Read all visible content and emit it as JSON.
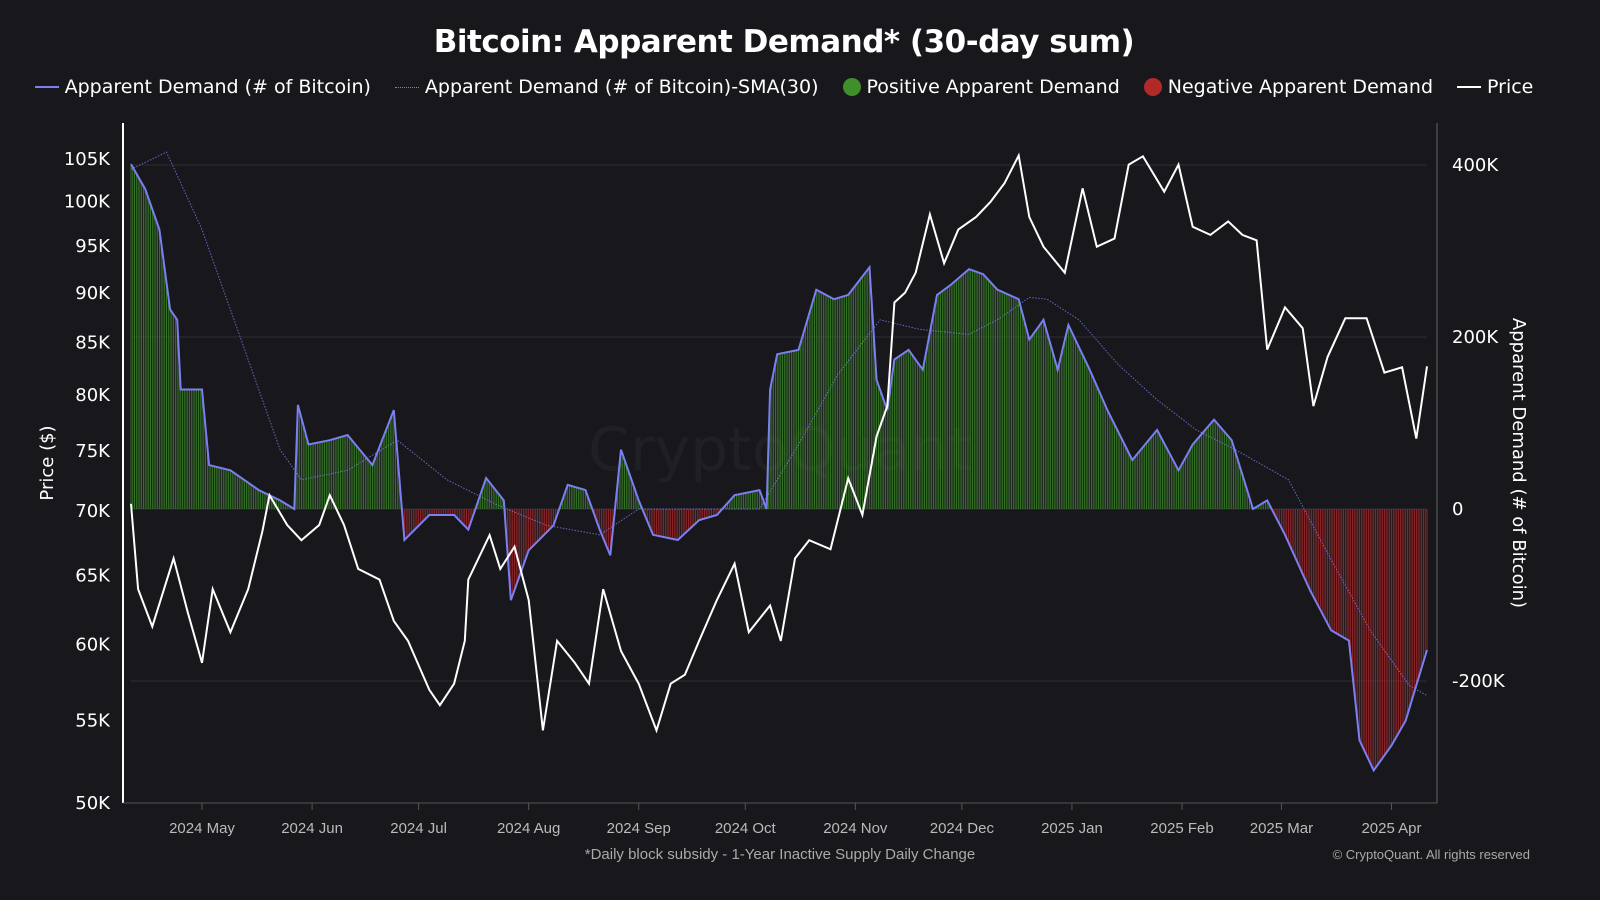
{
  "chart_data": {
    "type": "line",
    "title": "Bitcoin: Apparent Demand* (30-day sum)",
    "footnote": "*Daily block subsidy - 1-Year Inactive Supply Daily Change",
    "copyright": "© CryptoQuant. All rights reserved",
    "watermark": "CryptoQuant",
    "ylabel_left": "Price ($)",
    "ylabel_right": "Apparent Demand (# of Bitcoin)",
    "y_left_scale": "log",
    "y_left_ticks": [
      "50K",
      "55K",
      "60K",
      "65K",
      "70K",
      "75K",
      "80K",
      "85K",
      "90K",
      "95K",
      "100K",
      "105K"
    ],
    "y_left_tick_values": [
      50000,
      55000,
      60000,
      65000,
      70000,
      75000,
      80000,
      85000,
      90000,
      95000,
      100000,
      105000
    ],
    "y_right_ticks": [
      "-200K",
      "0",
      "200K",
      "400K"
    ],
    "y_right_tick_values": [
      -200000,
      0,
      200000,
      400000
    ],
    "x_ticks": [
      "2024 May",
      "2024 Jun",
      "2024 Jul",
      "2024 Aug",
      "2024 Sep",
      "2024 Oct",
      "2024 Nov",
      "2024 Dec",
      "2025 Jan",
      "2025 Feb",
      "2025 Mar",
      "2025 Apr"
    ],
    "x_tick_dates": [
      "2024-05-01",
      "2024-06-01",
      "2024-07-01",
      "2024-08-01",
      "2024-09-01",
      "2024-10-01",
      "2024-11-01",
      "2024-12-01",
      "2025-01-01",
      "2025-02-01",
      "2025-03-01",
      "2025-04-01"
    ],
    "xlim": [
      "2024-04-11",
      "2025-04-11"
    ],
    "grid": "horizontal at right-axis ticks",
    "legend_placement": "top",
    "colors": {
      "demand": "#7b7ff0",
      "sma": "#7b7ff0",
      "positive": "#3f8f2a",
      "negative": "#b02a2a",
      "price": "#ffffff",
      "background": "#17171c"
    },
    "legend": [
      {
        "label": "Apparent Demand (# of Bitcoin)",
        "swatch": "line"
      },
      {
        "label": "Apparent Demand (# of Bitcoin)-SMA(30)",
        "swatch": "dotted"
      },
      {
        "label": "Positive Apparent Demand",
        "swatch": "green-circle"
      },
      {
        "label": "Negative Apparent Demand",
        "swatch": "red-circle"
      },
      {
        "label": "Price",
        "swatch": "white-line"
      }
    ],
    "series": [
      {
        "name": "Price",
        "axis": "left",
        "unit": "USD",
        "points": [
          [
            "2024-04-11",
            70500
          ],
          [
            "2024-04-13",
            63900
          ],
          [
            "2024-04-17",
            61200
          ],
          [
            "2024-04-23",
            66200
          ],
          [
            "2024-04-27",
            62200
          ],
          [
            "2024-05-01",
            58700
          ],
          [
            "2024-05-04",
            63900
          ],
          [
            "2024-05-09",
            60800
          ],
          [
            "2024-05-14",
            63900
          ],
          [
            "2024-05-18",
            68300
          ],
          [
            "2024-05-20",
            71200
          ],
          [
            "2024-05-25",
            68800
          ],
          [
            "2024-05-29",
            67600
          ],
          [
            "2024-06-03",
            68800
          ],
          [
            "2024-06-06",
            71200
          ],
          [
            "2024-06-10",
            68800
          ],
          [
            "2024-06-14",
            65400
          ],
          [
            "2024-06-20",
            64600
          ],
          [
            "2024-06-24",
            61600
          ],
          [
            "2024-06-28",
            60200
          ],
          [
            "2024-07-04",
            56900
          ],
          [
            "2024-07-07",
            55900
          ],
          [
            "2024-07-11",
            57300
          ],
          [
            "2024-07-14",
            60200
          ],
          [
            "2024-07-15",
            64600
          ],
          [
            "2024-07-21",
            68000
          ],
          [
            "2024-07-24",
            65400
          ],
          [
            "2024-07-28",
            67100
          ],
          [
            "2024-08-01",
            63100
          ],
          [
            "2024-08-05",
            54300
          ],
          [
            "2024-08-09",
            60200
          ],
          [
            "2024-08-14",
            58700
          ],
          [
            "2024-08-18",
            57300
          ],
          [
            "2024-08-22",
            63900
          ],
          [
            "2024-08-27",
            59500
          ],
          [
            "2024-09-01",
            57300
          ],
          [
            "2024-09-06",
            54300
          ],
          [
            "2024-09-10",
            57300
          ],
          [
            "2024-09-14",
            57900
          ],
          [
            "2024-09-18",
            60200
          ],
          [
            "2024-09-23",
            63100
          ],
          [
            "2024-09-28",
            65800
          ],
          [
            "2024-10-02",
            60800
          ],
          [
            "2024-10-08",
            62700
          ],
          [
            "2024-10-11",
            60200
          ],
          [
            "2024-10-15",
            66200
          ],
          [
            "2024-10-19",
            67600
          ],
          [
            "2024-10-25",
            66900
          ],
          [
            "2024-10-30",
            72600
          ],
          [
            "2024-11-03",
            69600
          ],
          [
            "2024-11-07",
            76200
          ],
          [
            "2024-11-10",
            78900
          ],
          [
            "2024-11-12",
            88900
          ],
          [
            "2024-11-15",
            89900
          ],
          [
            "2024-11-18",
            92000
          ],
          [
            "2024-11-22",
            98400
          ],
          [
            "2024-11-26",
            93000
          ],
          [
            "2024-11-30",
            96700
          ],
          [
            "2024-12-05",
            98100
          ],
          [
            "2024-12-09",
            99800
          ],
          [
            "2024-12-13",
            102000
          ],
          [
            "2024-12-17",
            105300
          ],
          [
            "2024-12-20",
            98100
          ],
          [
            "2024-12-24",
            94800
          ],
          [
            "2024-12-30",
            92000
          ],
          [
            "2025-01-04",
            101400
          ],
          [
            "2025-01-08",
            94800
          ],
          [
            "2025-01-13",
            95700
          ],
          [
            "2025-01-17",
            104200
          ],
          [
            "2025-01-21",
            105200
          ],
          [
            "2025-01-27",
            101000
          ],
          [
            "2025-01-31",
            104200
          ],
          [
            "2025-02-04",
            97000
          ],
          [
            "2025-02-09",
            96100
          ],
          [
            "2025-02-14",
            97600
          ],
          [
            "2025-02-18",
            96100
          ],
          [
            "2025-02-22",
            95500
          ],
          [
            "2025-02-25",
            84200
          ],
          [
            "2025-03-02",
            88400
          ],
          [
            "2025-03-07",
            86300
          ],
          [
            "2025-03-10",
            78900
          ],
          [
            "2025-03-14",
            83500
          ],
          [
            "2025-03-19",
            87300
          ],
          [
            "2025-03-25",
            87300
          ],
          [
            "2025-03-30",
            82000
          ],
          [
            "2025-04-04",
            82500
          ],
          [
            "2025-04-08",
            76000
          ],
          [
            "2025-04-11",
            82600
          ]
        ]
      },
      {
        "name": "Apparent Demand (# of Bitcoin)",
        "axis": "right",
        "points": [
          [
            "2024-04-11",
            401000
          ],
          [
            "2024-04-15",
            372000
          ],
          [
            "2024-04-19",
            325000
          ],
          [
            "2024-04-22",
            232000
          ],
          [
            "2024-04-24",
            220000
          ],
          [
            "2024-04-25",
            139000
          ],
          [
            "2024-05-01",
            139000
          ],
          [
            "2024-05-03",
            51000
          ],
          [
            "2024-05-09",
            45000
          ],
          [
            "2024-05-17",
            22000
          ],
          [
            "2024-05-23",
            10000
          ],
          [
            "2024-05-27",
            0
          ],
          [
            "2024-05-28",
            121000
          ],
          [
            "2024-05-31",
            75000
          ],
          [
            "2024-06-06",
            80000
          ],
          [
            "2024-06-11",
            86000
          ],
          [
            "2024-06-18",
            51000
          ],
          [
            "2024-06-24",
            115000
          ],
          [
            "2024-06-27",
            -36000
          ],
          [
            "2024-07-04",
            -7000
          ],
          [
            "2024-07-11",
            -7000
          ],
          [
            "2024-07-15",
            -24000
          ],
          [
            "2024-07-20",
            36000
          ],
          [
            "2024-07-25",
            10000
          ],
          [
            "2024-07-27",
            -106000
          ],
          [
            "2024-08-01",
            -48000
          ],
          [
            "2024-08-08",
            -19000
          ],
          [
            "2024-08-12",
            28000
          ],
          [
            "2024-08-17",
            22000
          ],
          [
            "2024-08-21",
            -24000
          ],
          [
            "2024-08-24",
            -54000
          ],
          [
            "2024-08-27",
            69000
          ],
          [
            "2024-09-01",
            10000
          ],
          [
            "2024-09-05",
            -30000
          ],
          [
            "2024-09-12",
            -36000
          ],
          [
            "2024-09-18",
            -13000
          ],
          [
            "2024-09-23",
            -7000
          ],
          [
            "2024-09-28",
            16000
          ],
          [
            "2024-10-05",
            22000
          ],
          [
            "2024-10-07",
            0
          ],
          [
            "2024-10-08",
            139000
          ],
          [
            "2024-10-10",
            180000
          ],
          [
            "2024-10-16",
            185000
          ],
          [
            "2024-10-21",
            255000
          ],
          [
            "2024-10-26",
            244000
          ],
          [
            "2024-10-30",
            249000
          ],
          [
            "2024-11-05",
            281000
          ],
          [
            "2024-11-07",
            150000
          ],
          [
            "2024-11-10",
            115000
          ],
          [
            "2024-11-12",
            174000
          ],
          [
            "2024-11-16",
            185000
          ],
          [
            "2024-11-20",
            162000
          ],
          [
            "2024-11-24",
            249000
          ],
          [
            "2024-11-28",
            261000
          ],
          [
            "2024-12-03",
            279000
          ],
          [
            "2024-12-07",
            273000
          ],
          [
            "2024-12-11",
            255000
          ],
          [
            "2024-12-17",
            244000
          ],
          [
            "2024-12-20",
            197000
          ],
          [
            "2024-12-24",
            220000
          ],
          [
            "2024-12-28",
            162000
          ],
          [
            "2024-12-31",
            214000
          ],
          [
            "2025-01-06",
            162000
          ],
          [
            "2025-01-11",
            115000
          ],
          [
            "2025-01-18",
            57000
          ],
          [
            "2025-01-25",
            92000
          ],
          [
            "2025-01-31",
            45000
          ],
          [
            "2025-02-04",
            75000
          ],
          [
            "2025-02-10",
            104000
          ],
          [
            "2025-02-15",
            80000
          ],
          [
            "2025-02-21",
            0
          ],
          [
            "2025-02-25",
            10000
          ],
          [
            "2025-03-02",
            -30000
          ],
          [
            "2025-03-09",
            -94000
          ],
          [
            "2025-03-15",
            -141000
          ],
          [
            "2025-03-20",
            -153000
          ],
          [
            "2025-03-23",
            -269000
          ],
          [
            "2025-03-27",
            -304000
          ],
          [
            "2025-04-01",
            -275000
          ],
          [
            "2025-04-05",
            -246000
          ],
          [
            "2025-04-08",
            -205000
          ],
          [
            "2025-04-11",
            -164000
          ]
        ]
      },
      {
        "name": "Apparent Demand (# of Bitcoin)-SMA(30)",
        "axis": "right",
        "points": [
          [
            "2024-04-11",
            395000
          ],
          [
            "2024-04-21",
            415000
          ],
          [
            "2024-05-01",
            325000
          ],
          [
            "2024-05-12",
            197000
          ],
          [
            "2024-05-23",
            69000
          ],
          [
            "2024-05-29",
            34000
          ],
          [
            "2024-06-11",
            45000
          ],
          [
            "2024-06-25",
            80000
          ],
          [
            "2024-07-09",
            34000
          ],
          [
            "2024-07-23",
            5000
          ],
          [
            "2024-08-06",
            -19000
          ],
          [
            "2024-08-21",
            -30000
          ],
          [
            "2024-09-01",
            0
          ],
          [
            "2024-09-18",
            0
          ],
          [
            "2024-10-05",
            0
          ],
          [
            "2024-10-16",
            75000
          ],
          [
            "2024-10-27",
            156000
          ],
          [
            "2024-11-08",
            220000
          ],
          [
            "2024-11-19",
            209000
          ],
          [
            "2024-12-03",
            203000
          ],
          [
            "2024-12-11",
            220000
          ],
          [
            "2024-12-20",
            246000
          ],
          [
            "2024-12-25",
            244000
          ],
          [
            "2025-01-03",
            220000
          ],
          [
            "2025-01-14",
            168000
          ],
          [
            "2025-01-25",
            127000
          ],
          [
            "2025-02-05",
            92000
          ],
          [
            "2025-02-16",
            69000
          ],
          [
            "2025-03-03",
            34000
          ],
          [
            "2025-03-15",
            -59000
          ],
          [
            "2025-03-26",
            -141000
          ],
          [
            "2025-04-06",
            -205000
          ],
          [
            "2025-04-11",
            -217000
          ]
        ]
      }
    ]
  }
}
